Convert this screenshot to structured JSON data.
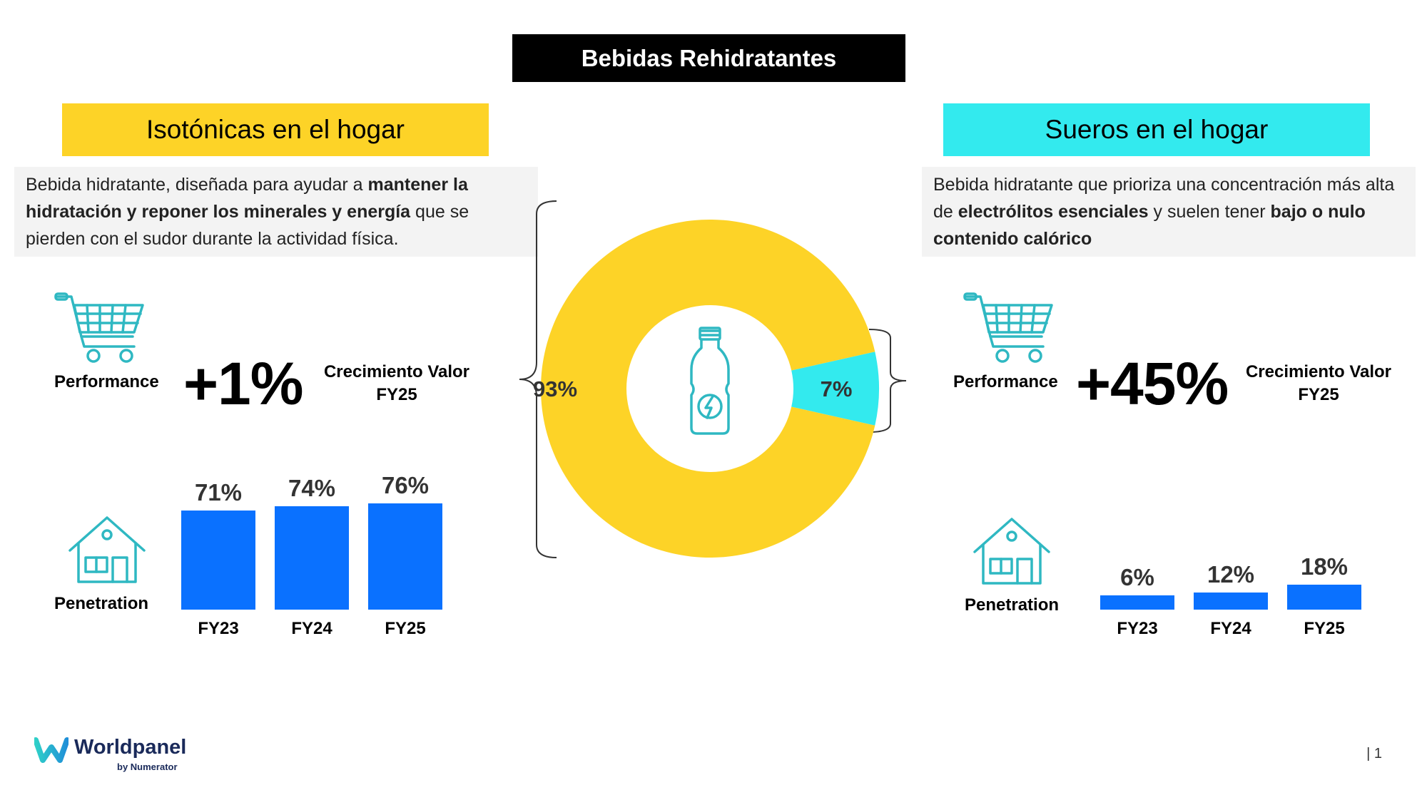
{
  "title": "Bebidas Rehidratantes",
  "left": {
    "heading": "Isotónicas en el hogar",
    "heading_color": "#fdd327",
    "desc_parts": [
      {
        "text": "Bebida hidratante, diseñada para ayudar a ",
        "bold": false
      },
      {
        "text": "mantener la hidratación y reponer los minerales y energía",
        "bold": true
      },
      {
        "text": " que se pierden con el sudor durante la actividad física.",
        "bold": false
      }
    ],
    "performance_label": "Performance",
    "performance_value": "+1%",
    "growth_label_line1": "Crecimiento Valor",
    "growth_label_line2": "FY25",
    "penetration_label": "Penetration"
  },
  "right": {
    "heading": "Sueros en el hogar",
    "heading_color": "#33eaee",
    "desc_parts": [
      {
        "text": "Bebida hidratante que prioriza una concentración más alta de ",
        "bold": false
      },
      {
        "text": "electrólitos esenciales",
        "bold": true
      },
      {
        "text": " y suelen tener ",
        "bold": false
      },
      {
        "text": "bajo o nulo contenido calórico",
        "bold": true
      }
    ],
    "performance_label": "Performance",
    "performance_value": "+45%",
    "growth_label_line1": "Crecimiento Valor",
    "growth_label_line2": "FY25",
    "penetration_label": "Penetration"
  },
  "chart_data": [
    {
      "type": "pie",
      "labels": [
        "Isotónicas en el hogar",
        "Sueros en el hogar"
      ],
      "values": [
        93,
        7
      ],
      "value_labels": [
        "93%",
        "7%"
      ],
      "colors": [
        "#fdd327",
        "#33eaee"
      ],
      "donut": true,
      "center_icon": "bottle-icon"
    },
    {
      "type": "bar",
      "categories": [
        "FY23",
        "FY24",
        "FY25"
      ],
      "values": [
        71,
        74,
        76
      ],
      "value_labels": [
        "71%",
        "74%",
        "76%"
      ],
      "color": "#0a71ff"
    },
    {
      "type": "bar",
      "categories": [
        "FY23",
        "FY24",
        "FY25"
      ],
      "values": [
        6,
        12,
        18
      ],
      "value_labels": [
        "6%",
        "12%",
        "18%"
      ],
      "color": "#0a71ff"
    }
  ],
  "footer": {
    "brand": "Worldpanel",
    "brand_sub": "by Numerator",
    "page": "| 1"
  }
}
